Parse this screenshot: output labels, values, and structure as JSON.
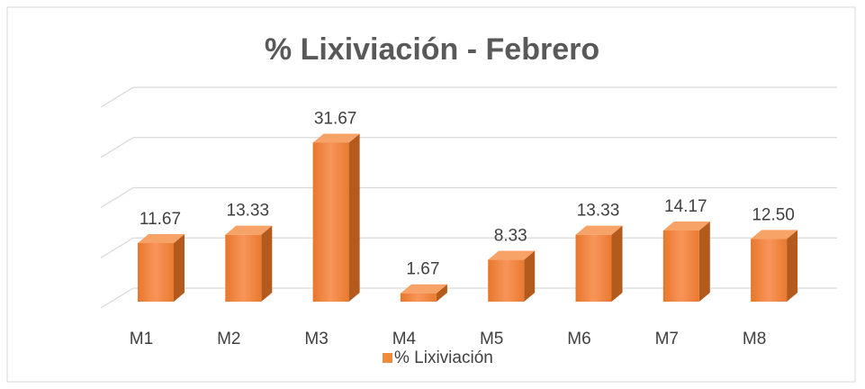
{
  "chart_data": {
    "type": "bar3d",
    "title": "% Lixiviación - Febrero",
    "categories": [
      "M1",
      "M2",
      "M3",
      "M4",
      "M5",
      "M6",
      "M7",
      "M8"
    ],
    "series": [
      {
        "name": "% Lixiviación",
        "color": "#f08a3c",
        "values": [
          11.67,
          13.33,
          31.67,
          1.67,
          8.33,
          13.33,
          14.17,
          12.5
        ],
        "value_labels": [
          "11.67",
          "13.33",
          "31.67",
          "1.67",
          "8.33",
          "13.33",
          "14.17",
          "12.50"
        ]
      }
    ],
    "ylim": [
      0,
      40
    ],
    "yticks": [
      0,
      10,
      20,
      30,
      40
    ],
    "grid": true,
    "legend": "bottom"
  }
}
